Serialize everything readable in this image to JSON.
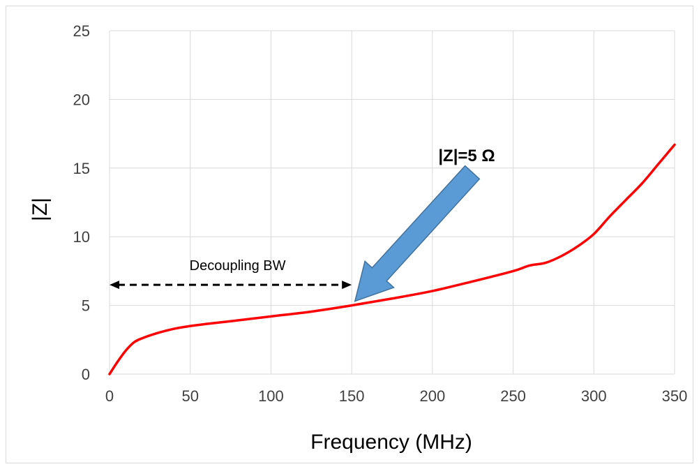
{
  "chart_data": {
    "type": "line",
    "title": "",
    "xlabel": "Frequency (MHz)",
    "ylabel": "|Z|",
    "xlim": [
      0,
      350
    ],
    "ylim": [
      0,
      25
    ],
    "x_ticks": [
      "0",
      "50",
      "100",
      "150",
      "200",
      "250",
      "300",
      "350"
    ],
    "y_ticks": [
      "0",
      "5",
      "10",
      "15",
      "20",
      "25"
    ],
    "grid": true,
    "legend": "none",
    "series": [
      {
        "color": "#ff0000",
        "x": [
          0,
          5,
          10,
          15,
          20,
          30,
          40,
          50,
          60,
          75,
          100,
          125,
          150,
          175,
          200,
          225,
          250,
          260,
          270,
          280,
          290,
          300,
          310,
          320,
          330,
          340,
          350
        ],
        "y": [
          0,
          0.9,
          1.7,
          2.3,
          2.6,
          3.0,
          3.3,
          3.5,
          3.65,
          3.85,
          4.2,
          4.55,
          5.0,
          5.5,
          6.05,
          6.75,
          7.5,
          7.9,
          8.1,
          8.6,
          9.3,
          10.2,
          11.5,
          12.7,
          13.9,
          15.3,
          16.7
        ]
      }
    ],
    "annotations": {
      "bandwidth_label": "Decoupling BW",
      "bandwidth_range": [
        0,
        150
      ],
      "bandwidth_y": 6.5,
      "callout_label": "|Z|=5 Ω",
      "callout_point": [
        152,
        5.0
      ],
      "callout_color": "#5b9bd5"
    }
  }
}
